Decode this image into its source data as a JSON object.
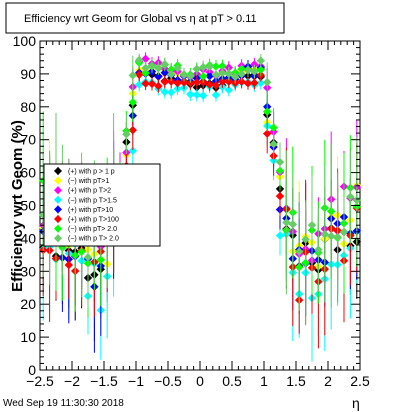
{
  "chart_data": {
    "type": "scatter",
    "title": "Efficiency wrt Geom for Global vs    η at pT > 0.11",
    "xlabel": "η",
    "ylabel": "Efficiency wrt Geom (%)",
    "xlim": [
      -2.5,
      2.5
    ],
    "ylim": [
      0,
      100
    ],
    "x_ticks": [
      "−2.5",
      "−2",
      "−1.5",
      "−1",
      "−0.5",
      "0",
      "0.5",
      "1",
      "1.5",
      "2",
      "2.5"
    ],
    "y_ticks": [
      "0",
      "10",
      "20",
      "30",
      "40",
      "50",
      "60",
      "70",
      "80",
      "90",
      "100"
    ],
    "timestamp": "Wed Sep 19 11:30:30 2018",
    "legend": [
      {
        "label": "(+) with p > 1 p",
        "color": "#000000"
      },
      {
        "label": "(−) with pT>1",
        "color": "#ffff00"
      },
      {
        "label": "(+) with p T>2",
        "color": "#ff00ff"
      },
      {
        "label": "(−) with p T>1.5",
        "color": "#00ffff"
      },
      {
        "label": "(+) with pT>10",
        "color": "#0000ff"
      },
      {
        "label": "(+) with p T>100",
        "color": "#ff0000"
      },
      {
        "label": "(−) with pT> 2.0",
        "color": "#00ff00"
      },
      {
        "label": "(−) with p T> 2.0",
        "color": "#66cc66"
      }
    ],
    "series": [
      {
        "color": "#000000",
        "base_offset": 0
      },
      {
        "color": "#ffff00",
        "base_offset": 2
      },
      {
        "color": "#ff00ff",
        "base_offset": 4
      },
      {
        "color": "#00ffff",
        "base_offset": -3
      },
      {
        "color": "#0000ff",
        "base_offset": 1
      },
      {
        "color": "#ff0000",
        "base_offset": -1
      },
      {
        "color": "#00ff00",
        "base_offset": 3
      },
      {
        "color": "#66cc66",
        "base_offset": 5
      }
    ]
  }
}
